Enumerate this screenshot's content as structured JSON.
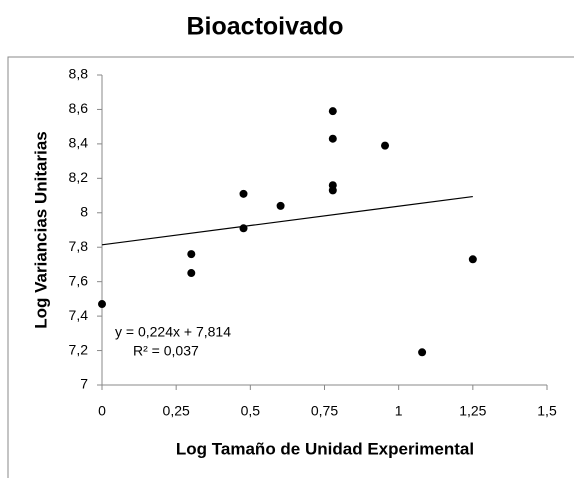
{
  "chart_data": {
    "type": "scatter",
    "title": "Bioactoivado",
    "x_label": "Log Tamaño de Unidad Experimental",
    "y_label": "Log Variancias Unitarias",
    "x": [
      0,
      0.301,
      0.301,
      0.477,
      0.477,
      0.602,
      0.778,
      0.778,
      0.778,
      0.778,
      0.954,
      1.079,
      1.25
    ],
    "values": [
      7.47,
      7.76,
      7.65,
      8.11,
      7.91,
      8.04,
      8.59,
      8.43,
      8.16,
      8.13,
      8.39,
      7.19,
      7.73
    ],
    "color": "#000000",
    "xlim": [
      0,
      1.5
    ],
    "xticks": [
      0,
      {
        "value": 0.25,
        "label": "0,25"
      },
      {
        "value": 0.5,
        "label": "0,5"
      },
      {
        "value": 0.75,
        "label": "0,75"
      },
      1,
      {
        "value": 1.25,
        "label": "1,25"
      },
      {
        "value": 1.5,
        "label": "1,5"
      }
    ],
    "ylim": [
      7,
      8.8
    ],
    "yticks": [
      7,
      {
        "value": 7.2,
        "label": "7,2"
      },
      {
        "value": 7.4,
        "label": "7,4"
      },
      {
        "value": 7.6,
        "label": "7,6"
      },
      {
        "value": 7.8,
        "label": "7,8"
      },
      8,
      {
        "value": 8.2,
        "label": "8,2"
      },
      {
        "value": 8.4,
        "label": "8,4"
      },
      {
        "value": 8.6,
        "label": "8,6"
      },
      {
        "value": 8.8,
        "label": "8,8"
      }
    ],
    "trendline": {
      "slope": 0.224,
      "intercept": 7.814,
      "xrange": [
        0,
        1.25
      ],
      "equation": "y = 0,224x + 7,814",
      "r_squared": "R² = 0,037"
    }
  }
}
